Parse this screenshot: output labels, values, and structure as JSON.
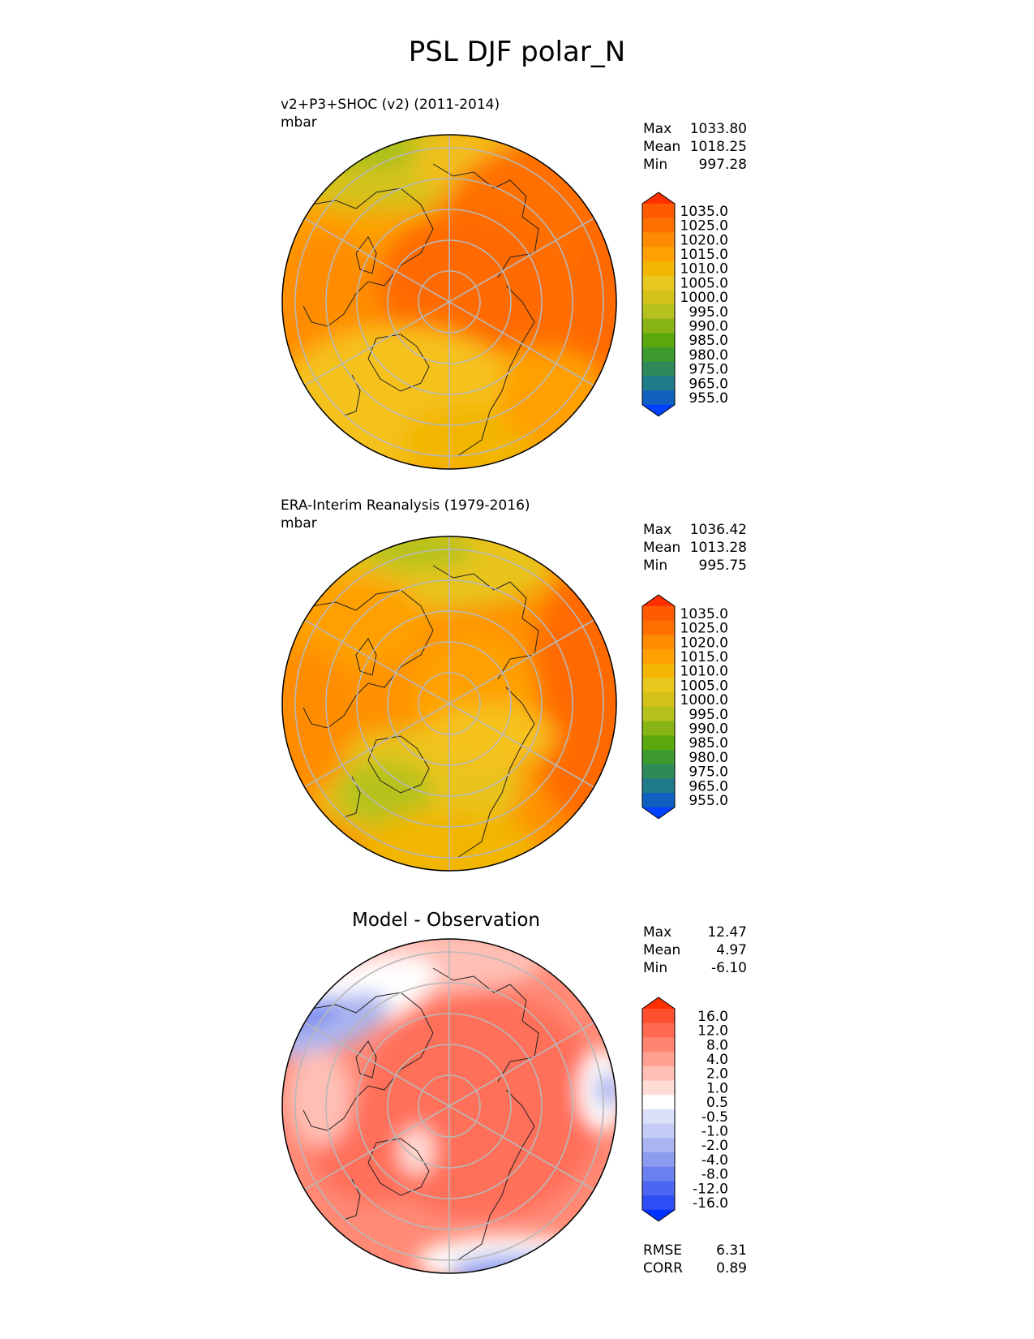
{
  "title": "PSL DJF polar_N",
  "panels": [
    {
      "id": "model",
      "caption_line1": "v2+P3+SHOC (v2) (2011-2014)",
      "caption_line2": "mbar",
      "stats": [
        {
          "label": "Max",
          "value": "1033.80"
        },
        {
          "label": "Mean",
          "value": "1018.25"
        },
        {
          "label": "Min",
          "value": "997.28"
        }
      ]
    },
    {
      "id": "observation",
      "caption_line1": "ERA-Interim Reanalysis (1979-2016)",
      "caption_line2": "mbar",
      "stats": [
        {
          "label": "Max",
          "value": "1036.42"
        },
        {
          "label": "Mean",
          "value": "1013.28"
        },
        {
          "label": "Min",
          "value": "995.75"
        }
      ]
    },
    {
      "id": "difference",
      "heading": "Model - Observation",
      "stats": [
        {
          "label": "Max",
          "value": "12.47"
        },
        {
          "label": "Mean",
          "value": "4.97"
        },
        {
          "label": "Min",
          "value": "-6.10"
        }
      ],
      "metrics": [
        {
          "label": "RMSE",
          "value": "6.31"
        },
        {
          "label": "CORR",
          "value": "0.89"
        }
      ]
    }
  ],
  "psl_colorbar": {
    "ticks": [
      "1035.0",
      "1025.0",
      "1020.0",
      "1015.0",
      "1010.0",
      "1005.0",
      "1000.0",
      "995.0",
      "990.0",
      "985.0",
      "980.0",
      "975.0",
      "965.0",
      "955.0"
    ],
    "colors_top_to_bottom": [
      "#ff3000",
      "#ff5a00",
      "#ff7000",
      "#ff8c00",
      "#ffa000",
      "#f2b600",
      "#e8c81c",
      "#d4c21a",
      "#b5c21e",
      "#88b515",
      "#5ba80d",
      "#3d9a2e",
      "#2f8a5a",
      "#1f7a8a",
      "#1060c0",
      "#0040ff"
    ]
  },
  "diff_colorbar": {
    "ticks": [
      "16.0",
      "12.0",
      "8.0",
      "4.0",
      "2.0",
      "1.0",
      "0.5",
      "-0.5",
      "-1.0",
      "-2.0",
      "-4.0",
      "-8.0",
      "-12.0",
      "-16.0"
    ],
    "colors_top_to_bottom": [
      "#ff3000",
      "#ff5030",
      "#ff6a50",
      "#ff8570",
      "#ffa090",
      "#ffbfb5",
      "#ffdcd5",
      "#ffffff",
      "#dce1fa",
      "#c5ccf5",
      "#a9b4f0",
      "#8b9bee",
      "#6a80f0",
      "#4d66f2",
      "#2e4df5",
      "#0033ff"
    ]
  },
  "colors": {
    "psl_orange_high": "#ff6a00",
    "psl_orange_mid": "#ff9100",
    "psl_gold": "#f5c21b",
    "psl_olive": "#b5c21e",
    "diff_red": "#ff6f5a",
    "diff_pink": "#ff9a8a",
    "diff_blue": "#7d93ee",
    "graticule": "#b8b8b8"
  }
}
